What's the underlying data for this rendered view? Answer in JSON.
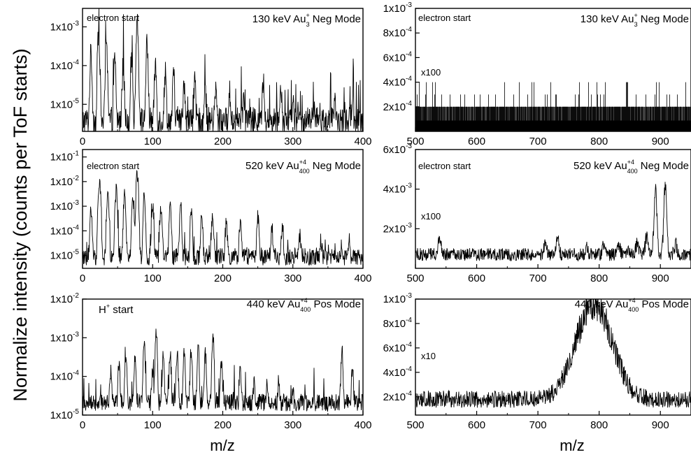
{
  "figure": {
    "ylabel": "Normalize intensity (counts per ToF starts)",
    "xlabel_left": "m/z",
    "xlabel_right": "m/z"
  },
  "chart_data": [
    {
      "type": "line",
      "title": "130 keV Au3+ Neg Mode",
      "title_parts": {
        "pre": "130 keV Au",
        "sub": "3",
        "sup": "+",
        "post": " Neg Mode"
      },
      "annotation": "electron start",
      "scale_label": "",
      "xlim": [
        0,
        400
      ],
      "xticks": [
        0,
        100,
        200,
        300,
        400
      ],
      "yscale": "log",
      "ylim": [
        2e-06,
        0.003
      ],
      "yticks": [
        0.001,
        0.0001,
        1e-05
      ],
      "yticklabels": [
        {
          "m": "1x10",
          "e": "-3"
        },
        {
          "m": "1x10",
          "e": "-4"
        },
        {
          "m": "1x10",
          "e": "-5"
        }
      ],
      "baseline": 3e-06,
      "peaks": [
        [
          12,
          0.00015
        ],
        [
          23,
          0.0006
        ],
        [
          34,
          0.0002
        ],
        [
          46,
          0.0001
        ],
        [
          58,
          8e-05
        ],
        [
          70,
          0.00012
        ],
        [
          78,
          0.0012
        ],
        [
          92,
          0.00025
        ],
        [
          104,
          8e-05
        ],
        [
          118,
          5e-05
        ],
        [
          130,
          4e-05
        ],
        [
          145,
          3e-05
        ],
        [
          160,
          2.5e-05
        ],
        [
          175,
          2e-05
        ],
        [
          190,
          1.8e-05
        ],
        [
          210,
          1.5e-05
        ],
        [
          230,
          1.2e-05
        ],
        [
          258,
          3e-05
        ],
        [
          283,
          2.5e-05
        ],
        [
          300,
          1e-05
        ],
        [
          330,
          8e-06
        ],
        [
          360,
          7e-06
        ],
        [
          385,
          1.2e-05
        ]
      ]
    },
    {
      "type": "line",
      "title": "130 keV Au3+ Neg Mode",
      "title_parts": {
        "pre": "130 keV Au",
        "sub": "3",
        "sup": "+",
        "post": " Neg Mode"
      },
      "annotation": "electron start",
      "scale_label": "x100",
      "xlim": [
        500,
        950
      ],
      "xticks": [
        500,
        600,
        700,
        800,
        900
      ],
      "yscale": "linear",
      "ylim": [
        0,
        0.001
      ],
      "yticks": [
        0.0002,
        0.0004,
        0.0006,
        0.0008,
        0.001
      ],
      "yticklabels": [
        {
          "m": "2x10",
          "e": "-4"
        },
        {
          "m": "4x10",
          "e": "-4"
        },
        {
          "m": "6x10",
          "e": "-4"
        },
        {
          "m": "8x10",
          "e": "-4"
        },
        {
          "m": "1x10",
          "e": "-3"
        }
      ],
      "baseline": 9e-05,
      "peaks": []
    },
    {
      "type": "line",
      "title": "520 keV Au400+4 Neg Mode",
      "title_parts": {
        "pre": "520 keV Au",
        "sub": "400",
        "sup": "+4",
        "post": " Neg Mode"
      },
      "annotation": "electron start",
      "scale_label": "",
      "xlim": [
        0,
        400
      ],
      "xticks": [
        0,
        100,
        200,
        300,
        400
      ],
      "yscale": "log",
      "ylim": [
        3e-06,
        0.2
      ],
      "yticks": [
        0.1,
        0.01,
        0.001,
        0.0001,
        1e-05
      ],
      "yticklabels": [
        {
          "m": "1x10",
          "e": "-1"
        },
        {
          "m": "1x10",
          "e": "-2"
        },
        {
          "m": "1x10",
          "e": "-3"
        },
        {
          "m": "1x10",
          "e": "-4"
        },
        {
          "m": "1x10",
          "e": "-5"
        }
      ],
      "baseline": 7e-06,
      "peaks": [
        [
          12,
          0.0004
        ],
        [
          24,
          0.01
        ],
        [
          36,
          0.003
        ],
        [
          48,
          0.003
        ],
        [
          60,
          0.002
        ],
        [
          72,
          0.0015
        ],
        [
          78,
          0.015
        ],
        [
          88,
          0.002
        ],
        [
          100,
          0.001
        ],
        [
          112,
          0.0008
        ],
        [
          125,
          0.0006
        ],
        [
          140,
          0.0005
        ],
        [
          155,
          0.0004
        ],
        [
          170,
          0.0003
        ],
        [
          185,
          0.0002
        ],
        [
          205,
          0.00015
        ],
        [
          225,
          0.00012
        ],
        [
          250,
          0.00025
        ],
        [
          270,
          0.0001
        ],
        [
          285,
          0.00012
        ],
        [
          310,
          5e-05
        ],
        [
          340,
          3e-05
        ],
        [
          380,
          2e-05
        ]
      ]
    },
    {
      "type": "line",
      "title": "520 keV Au400+4 Neg Mode",
      "title_parts": {
        "pre": "520 keV Au",
        "sub": "400",
        "sup": "+4",
        "post": " Neg Mode"
      },
      "annotation": "electron start",
      "scale_label": "x100",
      "xlim": [
        500,
        950
      ],
      "xticks": [
        500,
        600,
        700,
        800,
        900
      ],
      "yscale": "linear",
      "ylim": [
        0,
        0.006
      ],
      "yticks": [
        0.002,
        0.004,
        0.006
      ],
      "yticklabels": [
        {
          "m": "2x10",
          "e": "-3"
        },
        {
          "m": "4x10",
          "e": "-3"
        },
        {
          "m": "6x10",
          "e": "-3"
        }
      ],
      "baseline": 0.0007,
      "peaks": [
        [
          540,
          0.0016
        ],
        [
          700,
          0.001
        ],
        [
          712,
          0.0012
        ],
        [
          732,
          0.0015
        ],
        [
          780,
          0.001
        ],
        [
          808,
          0.0012
        ],
        [
          832,
          0.0011
        ],
        [
          848,
          0.001
        ],
        [
          862,
          0.0012
        ],
        [
          878,
          0.0017
        ],
        [
          892,
          0.0042
        ],
        [
          908,
          0.0044
        ],
        [
          925,
          0.0012
        ]
      ]
    },
    {
      "type": "line",
      "title": "440 keV Au400+4 Pos Mode",
      "title_parts": {
        "pre": "440 keV Au",
        "sub": "400",
        "sup": "+4",
        "post": " Pos Mode"
      },
      "annotation": "H+ start",
      "annotation_parts": {
        "pre": "H",
        "sup": "+",
        "post": " start"
      },
      "scale_label": "",
      "xlim": [
        0,
        400
      ],
      "xticks": [
        0,
        100,
        200,
        300,
        400
      ],
      "yscale": "log",
      "ylim": [
        1e-05,
        0.01
      ],
      "yticks": [
        0.01,
        0.001,
        0.0001,
        1e-05
      ],
      "yticklabels": [
        {
          "m": "1x10",
          "e": "-2"
        },
        {
          "m": "1x10",
          "e": "-3"
        },
        {
          "m": "1x10",
          "e": "-4"
        },
        {
          "m": "1x10",
          "e": "-5"
        }
      ],
      "baseline": 1.8e-05,
      "peaks": [
        [
          40,
          0.00012
        ],
        [
          52,
          0.0002
        ],
        [
          62,
          0.0003
        ],
        [
          75,
          0.00025
        ],
        [
          88,
          0.0005
        ],
        [
          100,
          0.00012
        ],
        [
          105,
          0.0012
        ],
        [
          115,
          0.0003
        ],
        [
          125,
          0.0003
        ],
        [
          135,
          0.00035
        ],
        [
          145,
          0.0004
        ],
        [
          155,
          0.0004
        ],
        [
          165,
          0.0004
        ],
        [
          175,
          0.0003
        ],
        [
          186,
          0.001
        ],
        [
          198,
          0.0002
        ],
        [
          225,
          0.00012
        ],
        [
          245,
          6e-05
        ],
        [
          263,
          5e-05
        ],
        [
          280,
          4e-05
        ],
        [
          300,
          3e-05
        ],
        [
          370,
          0.0004
        ],
        [
          385,
          0.00012
        ]
      ]
    },
    {
      "type": "line",
      "title": "440 keV Au400+4 Pos Mode",
      "title_parts": {
        "pre": "440 keV Au",
        "sub": "400",
        "sup": "+4",
        "post": " Pos Mode"
      },
      "annotation": "",
      "scale_label": "x10",
      "xlim": [
        500,
        950
      ],
      "xticks": [
        500,
        600,
        700,
        800,
        900
      ],
      "yscale": "linear",
      "ylim": [
        5e-05,
        0.001
      ],
      "yticks": [
        0.0002,
        0.0004,
        0.0006,
        0.0008,
        0.001
      ],
      "yticklabels": [
        {
          "m": "2x10",
          "e": "-4"
        },
        {
          "m": "4x10",
          "e": "-4"
        },
        {
          "m": "6x10",
          "e": "-4"
        },
        {
          "m": "8x10",
          "e": "-4"
        },
        {
          "m": "1x10",
          "e": "-3"
        }
      ],
      "baseline": 0.00018,
      "peaks": [
        [
          780,
          0.00058
        ],
        [
          802,
          0.00064
        ]
      ]
    }
  ]
}
